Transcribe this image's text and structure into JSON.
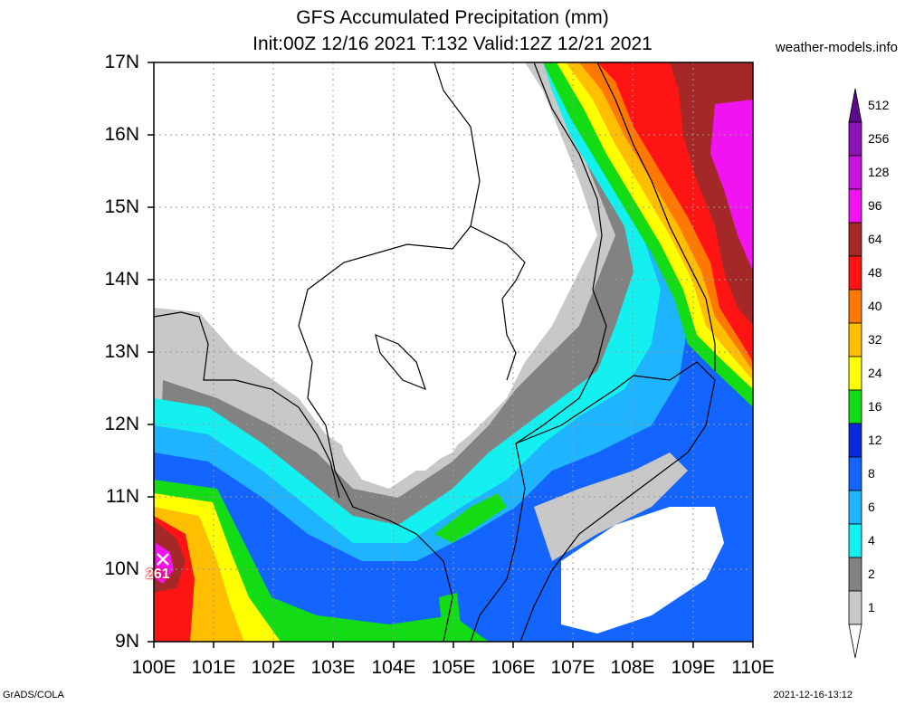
{
  "title": {
    "line1": "GFS Accumulated Precipitation (mm)",
    "line2": "Init:00Z 12/16 2021 T:132 Valid:12Z 12/21 2021"
  },
  "source": "weather-models.info",
  "footer": {
    "left": "GrADS/COLA",
    "right": "2021-12-16-13:12"
  },
  "lat_labels": [
    "17N",
    "16N",
    "15N",
    "14N",
    "13N",
    "12N",
    "11N",
    "10N",
    "9N"
  ],
  "lon_labels": [
    "100E",
    "101E",
    "102E",
    "103E",
    "104E",
    "105E",
    "106E",
    "107E",
    "108E",
    "109E",
    "110E"
  ],
  "legend": {
    "labels": [
      "512",
      "256",
      "128",
      "96",
      "64",
      "48",
      "40",
      "32",
      "24",
      "16",
      "12",
      "8",
      "6",
      "4",
      "2",
      "1"
    ],
    "colors": [
      "#5a0a8a",
      "#8c14b4",
      "#c814dc",
      "#f014f0",
      "#a52828",
      "#ff1414",
      "#ff7800",
      "#ffbe00",
      "#ffff00",
      "#14dc14",
      "#0a28dc",
      "#1464ff",
      "#1eb4ff",
      "#14f0f0",
      "#828282",
      "#c8c8c8",
      "#ffffff"
    ]
  },
  "max_marker": {
    "value": "261"
  }
}
